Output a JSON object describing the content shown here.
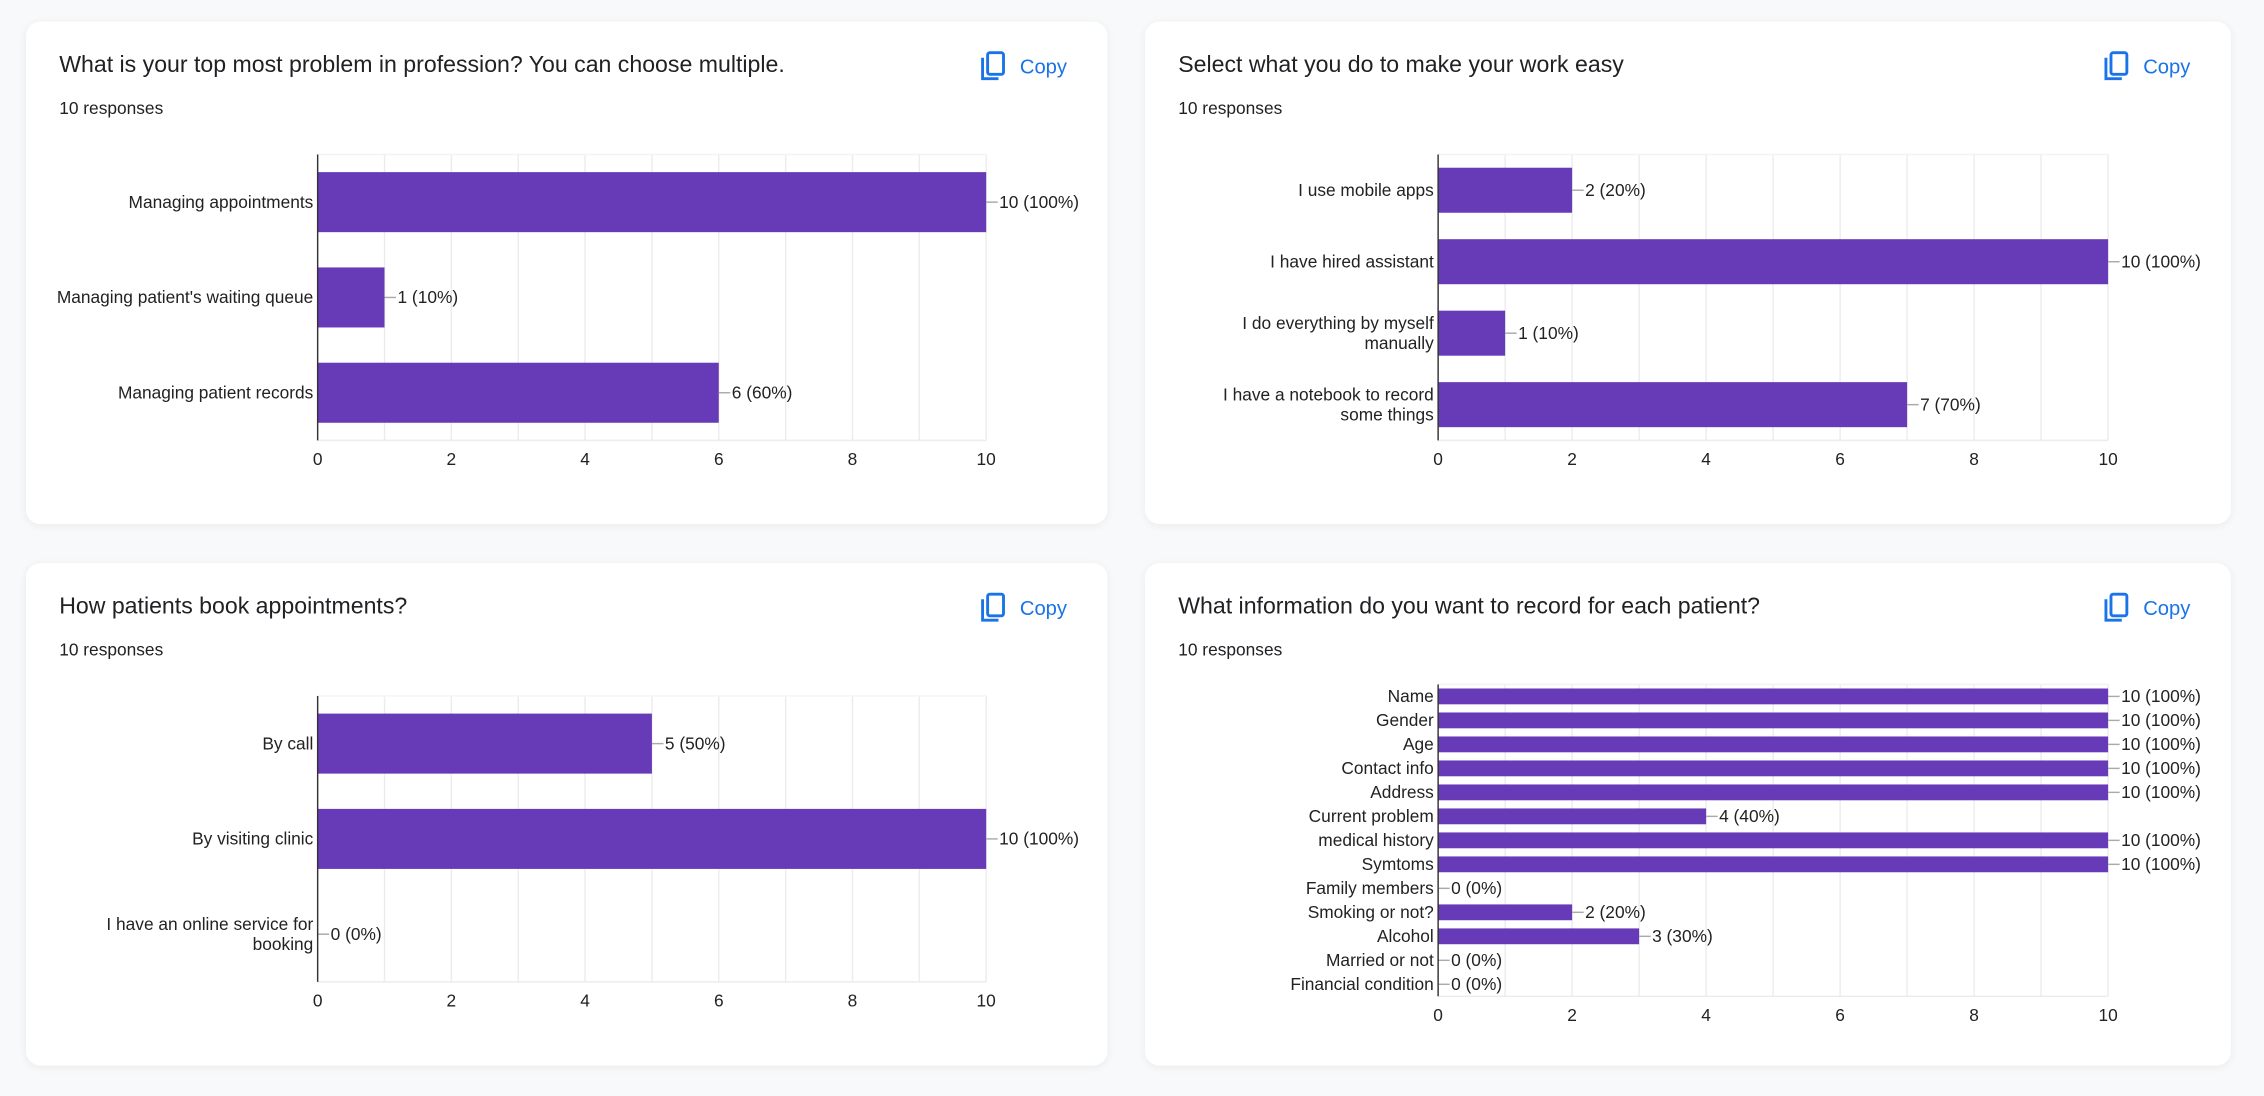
{
  "copy_label": "Copy",
  "chart_data": [
    {
      "type": "bar",
      "orientation": "horizontal",
      "title": "What is your top most problem in profession? You can choose multiple.",
      "responses": "10 responses",
      "categories": [
        "Managing appointments",
        "Managing patient's waiting queue",
        "Managing patient records"
      ],
      "values": [
        10,
        1,
        6
      ],
      "data_labels": [
        "10 (100%)",
        "1 (10%)",
        "6 (60%)"
      ],
      "xlim": [
        0,
        10
      ],
      "ticks": [
        "0",
        "2",
        "4",
        "6",
        "8",
        "10"
      ],
      "grid": true,
      "color": "#673ab7"
    },
    {
      "type": "bar",
      "orientation": "horizontal",
      "title": "Select what you do to make your work easy",
      "responses": "10 responses",
      "categories": [
        "I use mobile apps",
        "I have hired assistant",
        "I do everything by myself manually",
        "I have a notebook to record some things"
      ],
      "values": [
        2,
        10,
        1,
        7
      ],
      "data_labels": [
        "2 (20%)",
        "10 (100%)",
        "1 (10%)",
        "7 (70%)"
      ],
      "xlim": [
        0,
        10
      ],
      "ticks": [
        "0",
        "2",
        "4",
        "6",
        "8",
        "10"
      ],
      "grid": true,
      "color": "#673ab7"
    },
    {
      "type": "bar",
      "orientation": "horizontal",
      "title": "How patients book appointments?",
      "responses": "10 responses",
      "categories": [
        "By call",
        "By visiting clinic",
        "I have an online service for booking"
      ],
      "values": [
        5,
        10,
        0
      ],
      "data_labels": [
        "5 (50%)",
        "10 (100%)",
        "0 (0%)"
      ],
      "xlim": [
        0,
        10
      ],
      "ticks": [
        "0",
        "2",
        "4",
        "6",
        "8",
        "10"
      ],
      "grid": true,
      "color": "#673ab7"
    },
    {
      "type": "bar",
      "orientation": "horizontal",
      "title": "What information do you want to record for each patient?",
      "responses": "10 responses",
      "categories": [
        "Name",
        "Gender",
        "Age",
        "Contact info",
        "Address",
        "Current problem",
        "medical history",
        "Symtoms",
        "Family members",
        "Smoking or not?",
        "Alcohol",
        "Married or not",
        "Financial condition"
      ],
      "values": [
        10,
        10,
        10,
        10,
        10,
        4,
        10,
        10,
        0,
        2,
        3,
        0,
        0
      ],
      "data_labels": [
        "10 (100%)",
        "10 (100%)",
        "10 (100%)",
        "10 (100%)",
        "10 (100%)",
        "4 (40%)",
        "10 (100%)",
        "10 (100%)",
        "0 (0%)",
        "2 (20%)",
        "3 (30%)",
        "0 (0%)",
        "0 (0%)"
      ],
      "xlim": [
        0,
        10
      ],
      "ticks": [
        "0",
        "2",
        "4",
        "6",
        "8",
        "10"
      ],
      "grid": true,
      "color": "#673ab7"
    }
  ]
}
